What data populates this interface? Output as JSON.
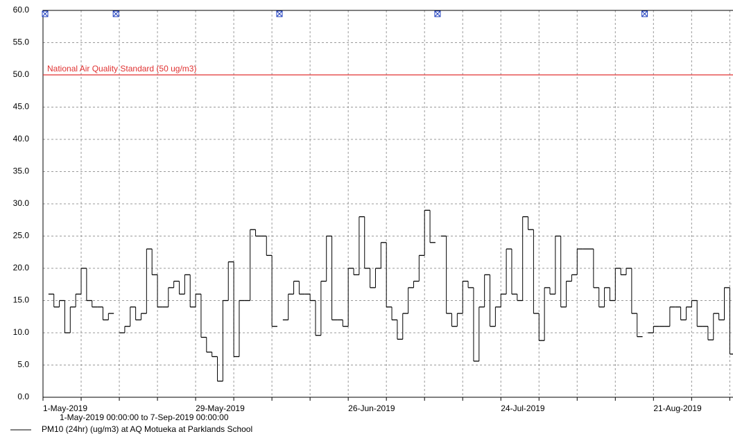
{
  "chart_data": {
    "type": "step",
    "subtitle": "1-May-2019 00:00:00 to  7-Sep-2019 00:00:00",
    "x": [
      "2019-05-01",
      "2019-05-02",
      "2019-05-03",
      "2019-05-04",
      "2019-05-05",
      "2019-05-06",
      "2019-05-07",
      "2019-05-08",
      "2019-05-09",
      "2019-05-10",
      "2019-05-11",
      "2019-05-12",
      "2019-05-13",
      "2019-05-14",
      "2019-05-15",
      "2019-05-16",
      "2019-05-17",
      "2019-05-18",
      "2019-05-19",
      "2019-05-20",
      "2019-05-21",
      "2019-05-22",
      "2019-05-23",
      "2019-05-24",
      "2019-05-25",
      "2019-05-26",
      "2019-05-27",
      "2019-05-28",
      "2019-05-29",
      "2019-05-30",
      "2019-05-31",
      "2019-06-01",
      "2019-06-02",
      "2019-06-03",
      "2019-06-04",
      "2019-06-05",
      "2019-06-06",
      "2019-06-07",
      "2019-06-08",
      "2019-06-09",
      "2019-06-10",
      "2019-06-11",
      "2019-06-12",
      "2019-06-13",
      "2019-06-14",
      "2019-06-15",
      "2019-06-16",
      "2019-06-17",
      "2019-06-18",
      "2019-06-19",
      "2019-06-20",
      "2019-06-21",
      "2019-06-22",
      "2019-06-23",
      "2019-06-24",
      "2019-06-25",
      "2019-06-26",
      "2019-06-27",
      "2019-06-28",
      "2019-06-29",
      "2019-06-30",
      "2019-07-01",
      "2019-07-02",
      "2019-07-03",
      "2019-07-04",
      "2019-07-05",
      "2019-07-06",
      "2019-07-07",
      "2019-07-08",
      "2019-07-09",
      "2019-07-10",
      "2019-07-11",
      "2019-07-12",
      "2019-07-13",
      "2019-07-14",
      "2019-07-15",
      "2019-07-16",
      "2019-07-17",
      "2019-07-18",
      "2019-07-19",
      "2019-07-20",
      "2019-07-21",
      "2019-07-22",
      "2019-07-23",
      "2019-07-24",
      "2019-07-25",
      "2019-07-26",
      "2019-07-27",
      "2019-07-28",
      "2019-07-29",
      "2019-07-30",
      "2019-07-31",
      "2019-08-01",
      "2019-08-02",
      "2019-08-03",
      "2019-08-04",
      "2019-08-05",
      "2019-08-06",
      "2019-08-07",
      "2019-08-08",
      "2019-08-09",
      "2019-08-10",
      "2019-08-11",
      "2019-08-12",
      "2019-08-13",
      "2019-08-14",
      "2019-08-15",
      "2019-08-16",
      "2019-08-17",
      "2019-08-18",
      "2019-08-19",
      "2019-08-20",
      "2019-08-21",
      "2019-08-22",
      "2019-08-23",
      "2019-08-24",
      "2019-08-25",
      "2019-08-26",
      "2019-08-27",
      "2019-08-28",
      "2019-08-29",
      "2019-08-30",
      "2019-08-31",
      "2019-09-01",
      "2019-09-02",
      "2019-09-03",
      "2019-09-04",
      "2019-09-05"
    ],
    "series": [
      {
        "name": "PM10 (24hr) (ug/m3) at AQ Motueka at Parklands School",
        "color": "#000000",
        "values": [
          null,
          16,
          14,
          15,
          10,
          14,
          16,
          20,
          15,
          14,
          14,
          12,
          13,
          null,
          10,
          11,
          14,
          12,
          13,
          23,
          19,
          14,
          14,
          17,
          18,
          16,
          19,
          14,
          16,
          9.3,
          7,
          6.3,
          2.5,
          15,
          21,
          6.3,
          15,
          15,
          26,
          25,
          25,
          22,
          11,
          null,
          12,
          16,
          18,
          16,
          16,
          15,
          9.6,
          18,
          25,
          12,
          12,
          11,
          20,
          19,
          28,
          20,
          17,
          20,
          24,
          14,
          12,
          9,
          13,
          17,
          18,
          22,
          29,
          24,
          null,
          25,
          13,
          11,
          13,
          18,
          17,
          5.6,
          14,
          19,
          11,
          14,
          16,
          23,
          16,
          15,
          28,
          26,
          13,
          8.8,
          17,
          16,
          25,
          14,
          18,
          19,
          23,
          23,
          23,
          17,
          14,
          17,
          15,
          20,
          19,
          20,
          13,
          9.4,
          null,
          10,
          11,
          11,
          11,
          14,
          14,
          12,
          14,
          15,
          11,
          11,
          8.9,
          13,
          12,
          17,
          6.7,
          5.4
        ]
      }
    ],
    "missing_color": "#1f3fbf",
    "reference_line": {
      "value": 50,
      "label": "National Air Quality Standard (50 ug/m3)",
      "color": "#e03030"
    },
    "xlim": [
      "2019-05-01",
      "2019-09-07"
    ],
    "xticks": [
      {
        "value": "2019-05-01",
        "label": "1-May-2019"
      },
      {
        "value": "2019-05-08",
        "label": null
      },
      {
        "value": "2019-05-15",
        "label": null
      },
      {
        "value": "2019-05-22",
        "label": null
      },
      {
        "value": "2019-05-29",
        "label": "29-May-2019"
      },
      {
        "value": "2019-06-05",
        "label": null
      },
      {
        "value": "2019-06-12",
        "label": null
      },
      {
        "value": "2019-06-19",
        "label": null
      },
      {
        "value": "2019-06-26",
        "label": "26-Jun-2019"
      },
      {
        "value": "2019-07-03",
        "label": null
      },
      {
        "value": "2019-07-10",
        "label": null
      },
      {
        "value": "2019-07-17",
        "label": null
      },
      {
        "value": "2019-07-24",
        "label": "24-Jul-2019"
      },
      {
        "value": "2019-07-31",
        "label": null
      },
      {
        "value": "2019-08-07",
        "label": null
      },
      {
        "value": "2019-08-14",
        "label": null
      },
      {
        "value": "2019-08-21",
        "label": "21-Aug-2019"
      },
      {
        "value": "2019-08-28",
        "label": null
      },
      {
        "value": "2019-09-04",
        "label": null
      }
    ],
    "ylim": [
      0,
      60
    ],
    "yticks": [
      {
        "value": 0,
        "label": "0.0"
      },
      {
        "value": 5,
        "label": "5.0"
      },
      {
        "value": 10,
        "label": "10.0"
      },
      {
        "value": 15,
        "label": "15.0"
      },
      {
        "value": 20,
        "label": "20.0"
      },
      {
        "value": 25,
        "label": "25.0"
      },
      {
        "value": 30,
        "label": "30.0"
      },
      {
        "value": 35,
        "label": "35.0"
      },
      {
        "value": 40,
        "label": "40.0"
      },
      {
        "value": 45,
        "label": "45.0"
      },
      {
        "value": 50,
        "label": "50.0"
      },
      {
        "value": 55,
        "label": "55.0"
      },
      {
        "value": 60,
        "label": "60.0"
      }
    ],
    "grid": true
  }
}
